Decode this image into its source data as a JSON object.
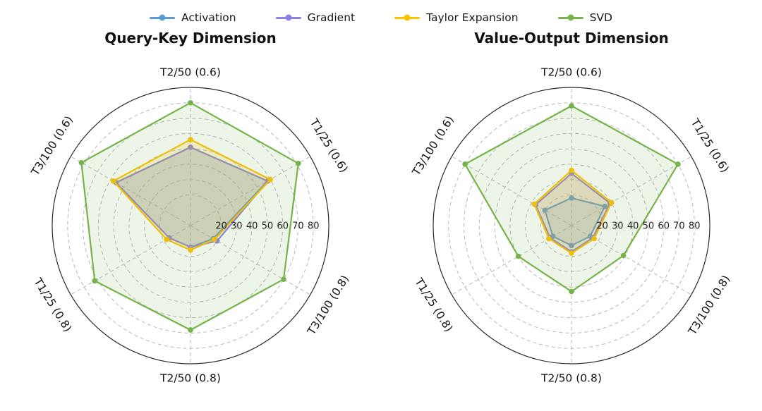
{
  "chart_data": [
    {
      "type": "radar",
      "title": "Query-Key Dimension",
      "categories": [
        "T2/50 (0.6)",
        "T1/25 (0.6)",
        "T3/100 (0.8)",
        "T2/50 (0.8)",
        "T1/25 (0.8)",
        "T3/100 (0.6)"
      ],
      "r_ticks": [
        20,
        30,
        40,
        50,
        60,
        70,
        80
      ],
      "r_max": 90,
      "grid": "dashed-circles-and-spokes",
      "legend_position": "top-center-shared",
      "series": [
        {
          "name": "Activation",
          "color": "#5B9BD5",
          "fill_opacity": 0.18,
          "values": [
            51,
            58,
            17,
            14,
            16,
            56
          ]
        },
        {
          "name": "Gradient",
          "color": "#8B80E6",
          "fill_opacity": 0.18,
          "values": [
            51,
            58,
            20,
            14,
            16,
            56
          ]
        },
        {
          "name": "Taylor Expansion",
          "color": "#FFC000",
          "fill_opacity": 0.18,
          "values": [
            56,
            60,
            18,
            16,
            18,
            58
          ]
        },
        {
          "name": "SVD",
          "color": "#76B44B",
          "fill_opacity": 0.13,
          "values": [
            80,
            81,
            70,
            68,
            72,
            82
          ]
        }
      ]
    },
    {
      "type": "radar",
      "title": "Value-Output Dimension",
      "categories": [
        "T2/50 (0.6)",
        "T1/25 (0.6)",
        "T3/100 (0.8)",
        "T2/50 (0.8)",
        "T1/25 (0.8)",
        "T3/100 (0.6)"
      ],
      "r_ticks": [
        20,
        30,
        40,
        50,
        60,
        70,
        80
      ],
      "r_max": 90,
      "grid": "dashed-circles-and-spokes",
      "legend_position": "top-center-shared",
      "series": [
        {
          "name": "Activation",
          "color": "#5B9BD5",
          "fill_opacity": 0.18,
          "values": [
            18,
            25,
            14,
            13,
            14,
            20
          ]
        },
        {
          "name": "Gradient",
          "color": "#8B80E6",
          "fill_opacity": 0.18,
          "values": [
            34,
            29,
            16,
            17,
            16,
            27
          ]
        },
        {
          "name": "Taylor Expansion",
          "color": "#FFC000",
          "fill_opacity": 0.18,
          "values": [
            36,
            30,
            17,
            18,
            17,
            28
          ]
        },
        {
          "name": "SVD",
          "color": "#76B44B",
          "fill_opacity": 0.13,
          "values": [
            78,
            80,
            39,
            43,
            40,
            80
          ]
        }
      ]
    }
  ],
  "legend": {
    "entries": [
      "Activation",
      "Gradient",
      "Taylor Expansion",
      "SVD"
    ],
    "colors": [
      "#5B9BD5",
      "#8B80E6",
      "#FFC000",
      "#76B44B"
    ]
  },
  "style": {
    "grid_color": "#b8b8b8",
    "outline_color": "#2a2a2a",
    "label_color": "#111111",
    "tick_label_color": "#222222"
  }
}
